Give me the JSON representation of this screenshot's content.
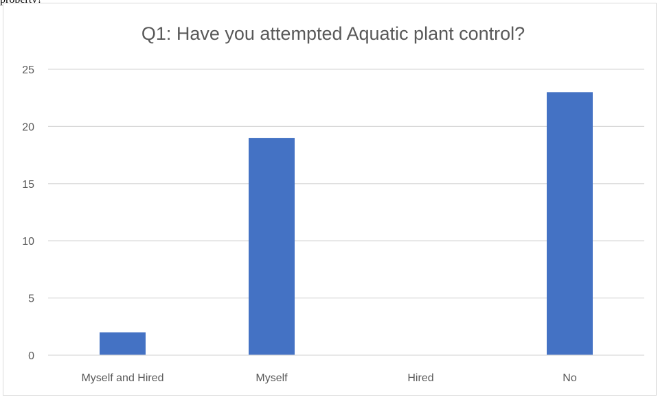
{
  "top_text": "property?",
  "chart_data": {
    "type": "bar",
    "title": "Q1: Have you attempted Aquatic plant control?",
    "categories": [
      "Myself and Hired",
      "Myself",
      "Hired",
      "No"
    ],
    "values": [
      2,
      19,
      0,
      23
    ],
    "ylim": [
      0,
      25
    ],
    "yticks": [
      "0",
      "5",
      "10",
      "15",
      "20",
      "25"
    ],
    "grid": true,
    "legend": "none",
    "bar_color": "#4472c4",
    "grid_color": "#d9d9d9"
  }
}
